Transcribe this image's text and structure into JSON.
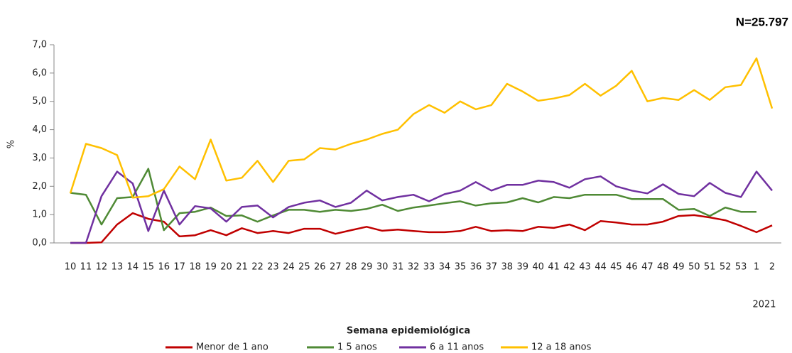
{
  "chart_data": {
    "type": "line",
    "title": "N=25.797",
    "y_label": "%",
    "x_label": "Semana epidemiológica",
    "annotation": "2021",
    "categories": [
      "10",
      "11",
      "12",
      "13",
      "14",
      "15",
      "16",
      "17",
      "18",
      "19",
      "20",
      "21",
      "22",
      "23",
      "24",
      "25",
      "26",
      "27",
      "28",
      "29",
      "30",
      "31",
      "32",
      "33",
      "34",
      "35",
      "36",
      "37",
      "38",
      "39",
      "40",
      "41",
      "42",
      "43",
      "44",
      "45",
      "46",
      "47",
      "48",
      "49",
      "50",
      "51",
      "52",
      "53",
      "1",
      "2"
    ],
    "ylim": [
      0,
      7
    ],
    "yticks": [
      {
        "value": 0,
        "label": "0,0"
      },
      {
        "value": 1,
        "label": "1,0"
      },
      {
        "value": 2,
        "label": "2,0"
      },
      {
        "value": 3,
        "label": "3,0"
      },
      {
        "value": 4,
        "label": "4,0"
      },
      {
        "value": 5,
        "label": "5,0"
      },
      {
        "value": 6,
        "label": "6,0"
      },
      {
        "value": 7,
        "label": "7,0"
      }
    ],
    "series": [
      {
        "name": "Menor de 1 ano",
        "color": "#c00000",
        "values": [
          0,
          0,
          0.02,
          0.65,
          1.05,
          0.85,
          0.75,
          0.23,
          0.27,
          0.45,
          0.27,
          0.52,
          0.35,
          0.42,
          0.35,
          0.5,
          0.5,
          0.32,
          0.45,
          0.57,
          0.43,
          0.47,
          0.42,
          0.38,
          0.38,
          0.42,
          0.57,
          0.42,
          0.45,
          0.42,
          0.57,
          0.53,
          0.65,
          0.45,
          0.77,
          0.72,
          0.65,
          0.65,
          0.75,
          0.95,
          0.98,
          0.9,
          0.8,
          0.6,
          0.38,
          0.62
        ]
      },
      {
        "name": "1 5 anos",
        "color": "#4f8a35",
        "values": [
          1.77,
          1.7,
          0.65,
          1.58,
          1.62,
          2.62,
          0.45,
          1.05,
          1.1,
          1.25,
          0.95,
          0.97,
          0.75,
          0.97,
          1.17,
          1.17,
          1.1,
          1.17,
          1.13,
          1.2,
          1.35,
          1.13,
          1.25,
          1.32,
          1.4,
          1.47,
          1.32,
          1.4,
          1.43,
          1.58,
          1.43,
          1.62,
          1.58,
          1.7,
          1.7,
          1.7,
          1.55,
          1.55,
          1.55,
          1.17,
          1.2,
          0.95,
          1.25,
          1.1,
          1.1,
          null
        ]
      },
      {
        "name": "6 a 11 anos",
        "color": "#7030a0",
        "values": [
          0,
          0,
          1.65,
          2.52,
          2.1,
          0.42,
          1.85,
          0.65,
          1.3,
          1.22,
          0.75,
          1.27,
          1.32,
          0.9,
          1.27,
          1.42,
          1.5,
          1.27,
          1.42,
          1.85,
          1.5,
          1.62,
          1.7,
          1.47,
          1.72,
          1.85,
          2.15,
          1.85,
          2.05,
          2.05,
          2.2,
          2.15,
          1.95,
          2.25,
          2.35,
          2.0,
          1.85,
          1.75,
          2.07,
          1.73,
          1.65,
          2.12,
          1.77,
          1.62,
          2.52,
          1.85
        ]
      },
      {
        "name": "12 a 18 anos",
        "color": "#ffc000",
        "values": [
          1.75,
          3.5,
          3.35,
          3.1,
          1.6,
          1.65,
          1.9,
          2.7,
          2.25,
          3.65,
          2.2,
          2.3,
          2.9,
          2.15,
          2.9,
          2.95,
          3.35,
          3.3,
          3.5,
          3.65,
          3.85,
          4.0,
          4.55,
          4.87,
          4.6,
          5.0,
          4.72,
          4.87,
          5.62,
          5.35,
          5.02,
          5.1,
          5.22,
          5.62,
          5.2,
          5.55,
          6.08,
          5.0,
          5.12,
          5.05,
          5.4,
          5.05,
          5.5,
          5.58,
          6.52,
          4.75
        ]
      }
    ]
  }
}
